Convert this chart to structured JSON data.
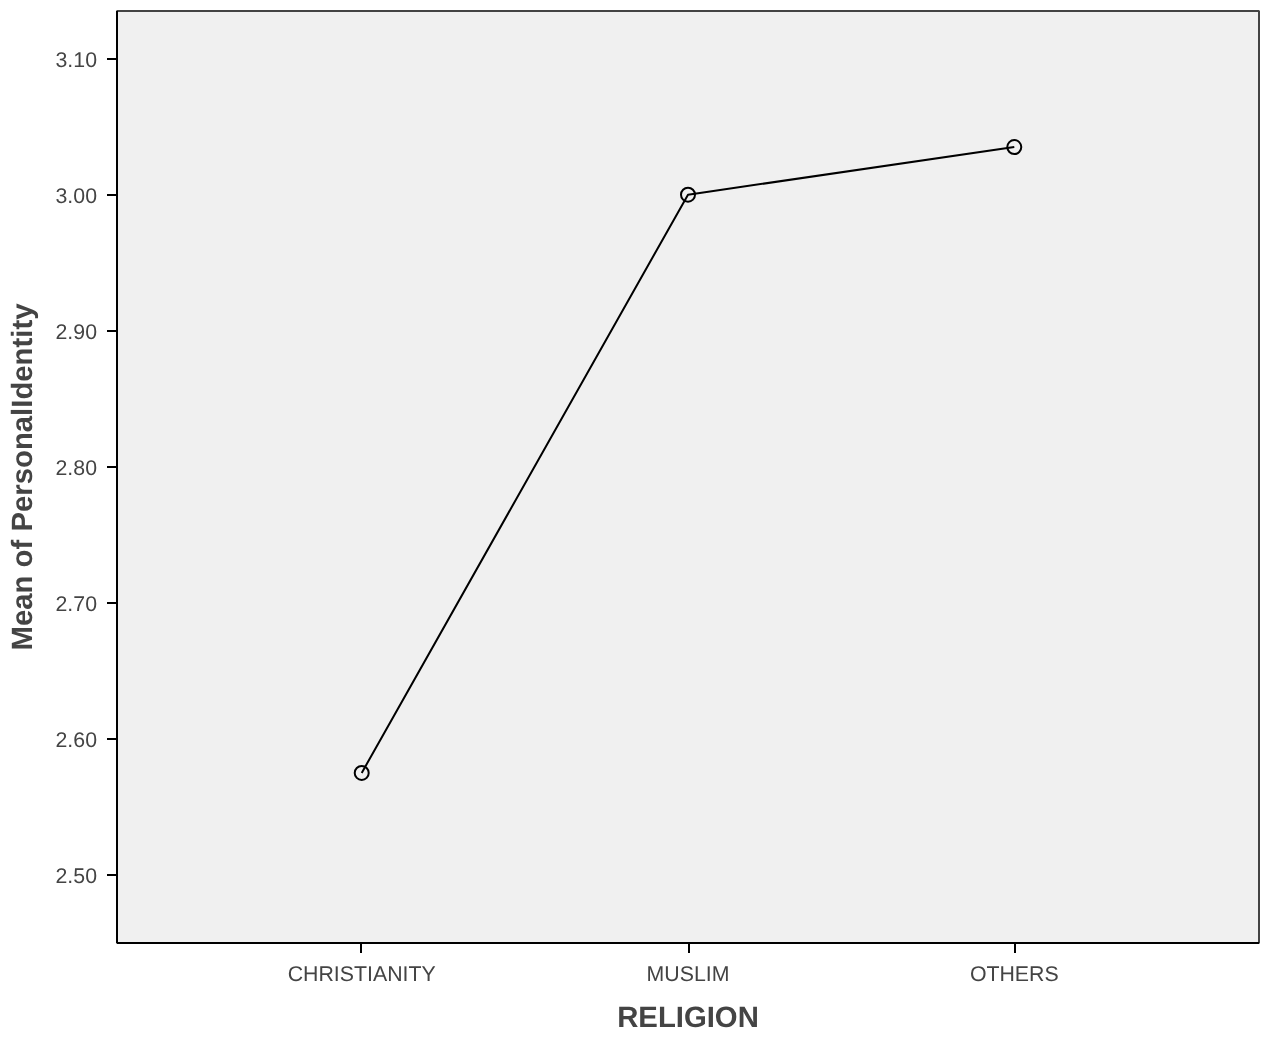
{
  "chart_data": {
    "type": "line",
    "xlabel": "RELIGION",
    "ylabel": "Mean of PersonalIdentity",
    "categories": [
      "CHRISTIANITY",
      "MUSLIM",
      "OTHERS"
    ],
    "series": [
      {
        "color": "#000000",
        "values": [
          2.575,
          3.0,
          3.035
        ]
      }
    ],
    "ylim": [
      2.45,
      3.135
    ],
    "yticks": [
      {
        "value": 2.5,
        "label": "2.50"
      },
      {
        "value": 2.6,
        "label": "2.60"
      },
      {
        "value": 2.7,
        "label": "2.70"
      },
      {
        "value": 2.8,
        "label": "2.80"
      },
      {
        "value": 2.9,
        "label": "2.90"
      },
      {
        "value": 3.0,
        "label": "3.00"
      },
      {
        "value": 3.1,
        "label": "3.10"
      }
    ],
    "grid": false,
    "marker": "circle",
    "line_style": "solid"
  }
}
